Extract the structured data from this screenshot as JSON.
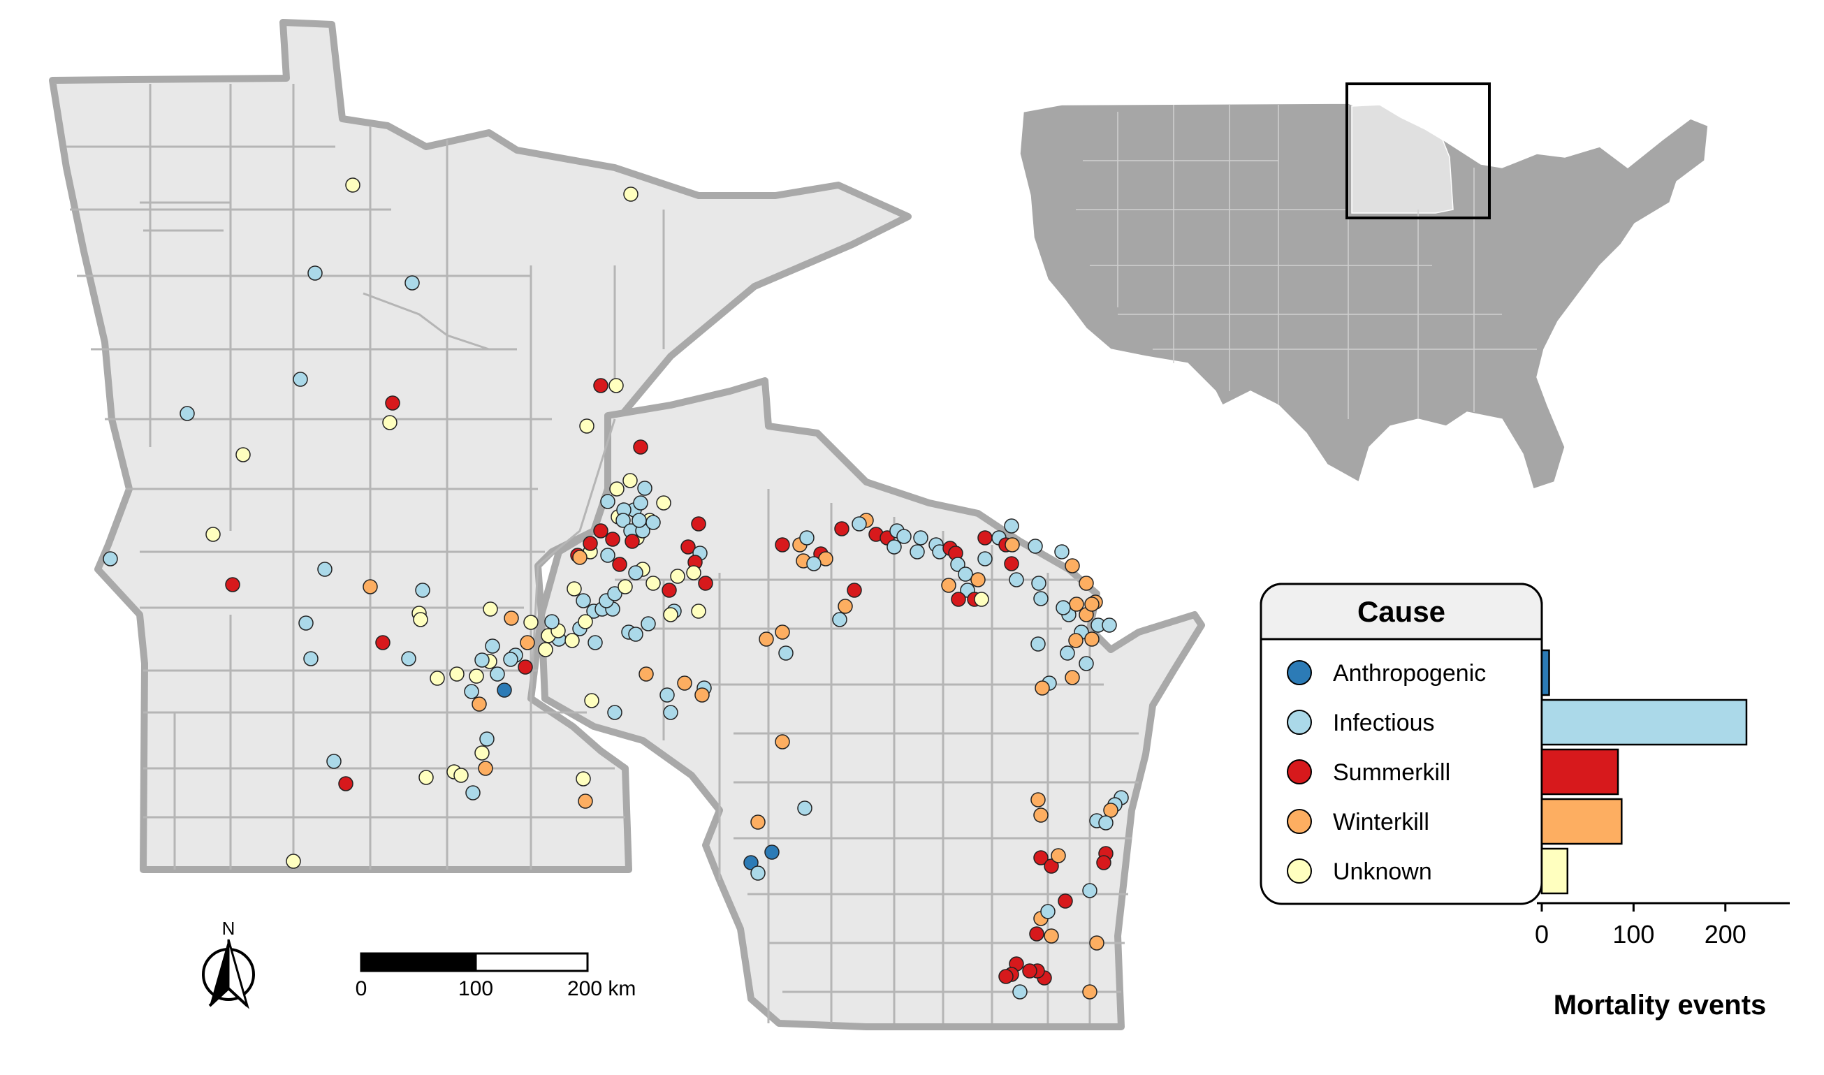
{
  "legend": {
    "title": "Cause",
    "items": [
      {
        "label": "Anthropogenic",
        "color": "#2c7bb6"
      },
      {
        "label": "Infectious",
        "color": "#abd9e9"
      },
      {
        "label": "Summerkill",
        "color": "#d7191c"
      },
      {
        "label": "Winterkill",
        "color": "#fdae61"
      },
      {
        "label": "Unknown",
        "color": "#ffffbf"
      }
    ]
  },
  "chart_data": {
    "type": "bar",
    "orientation": "horizontal",
    "categories": [
      "Anthropogenic",
      "Infectious",
      "Summerkill",
      "Winterkill",
      "Unknown"
    ],
    "values": [
      8,
      223,
      83,
      87,
      28
    ],
    "colors": [
      "#2c7bb6",
      "#abd9e9",
      "#d7191c",
      "#fdae61",
      "#ffffbf"
    ],
    "xlabel": "Mortality events",
    "xticks": [
      "0",
      "100",
      "200"
    ],
    "xlim": [
      0,
      260
    ]
  },
  "scale_bar": {
    "labels": [
      "0",
      "100",
      "200 km"
    ]
  },
  "north_arrow": {
    "label": "N"
  },
  "inset": {
    "region": "Minnesota and Wisconsin highlighted on conterminous United States"
  },
  "colors": {
    "land": "#e8e8e8",
    "state_border": "#a9a9a9",
    "county_line": "#b5b5b5",
    "us_land": "#a6a6a6",
    "us_highlight": "#e0e0e0"
  }
}
